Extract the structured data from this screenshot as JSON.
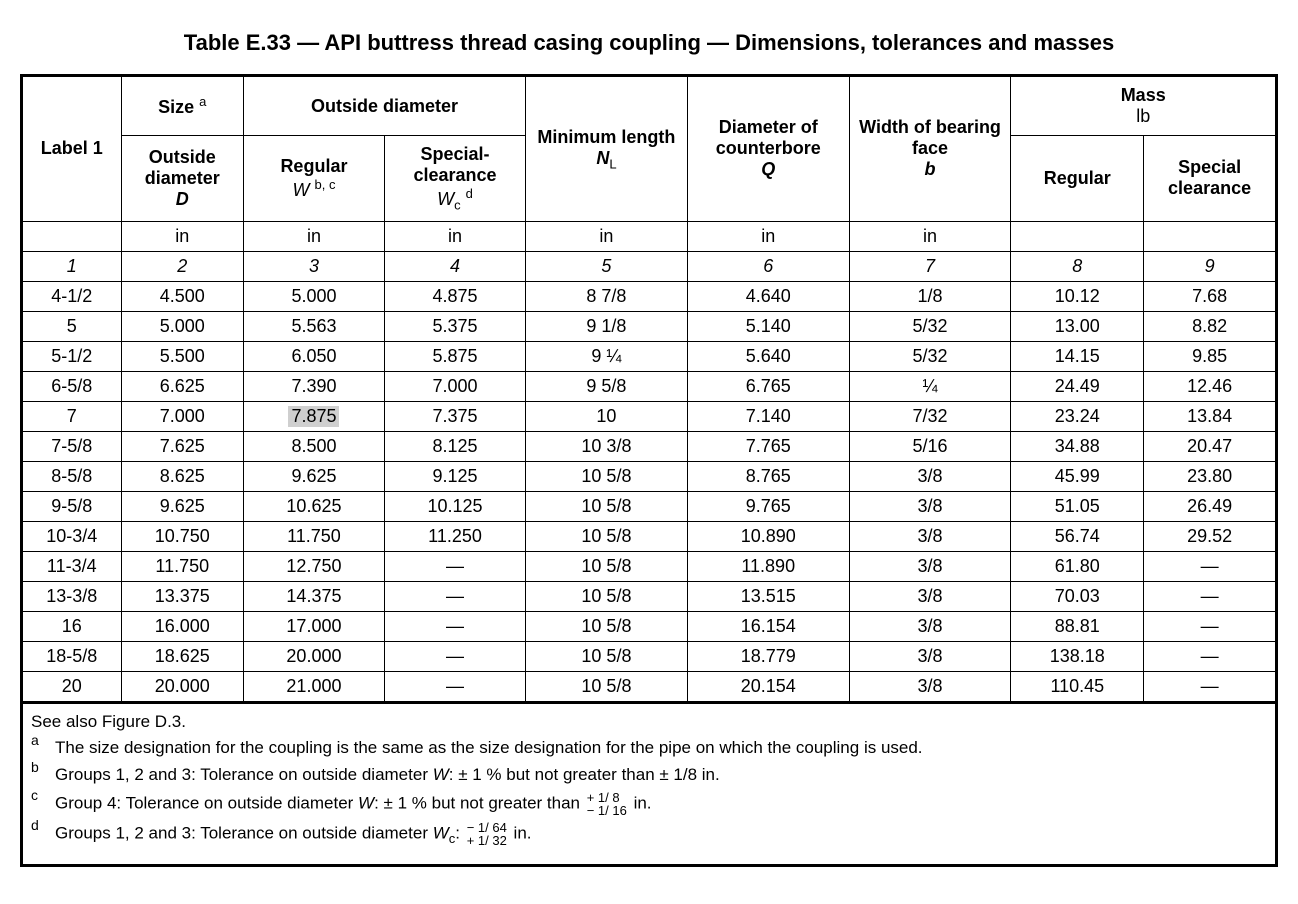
{
  "title": "Table E.33 — API buttress thread casing coupling — Dimensions, tolerances and masses",
  "type": "table",
  "background_color": "#ffffff",
  "text_color": "#000000",
  "highlight_color": "#cfcfcf",
  "border_color": "#000000",
  "header": {
    "label1": "Label 1",
    "size_group": "Size",
    "size_sup": "a",
    "od_group": "Outside diameter",
    "od_outside": "Outside diameter",
    "od_outside_sym": "D",
    "od_regular": "Regular",
    "od_regular_sym": "W",
    "od_regular_sup": "b, c",
    "od_special": "Special-clearance",
    "od_special_sym": "W",
    "od_special_sub": "c",
    "od_special_sup": "d",
    "min_len": "Minimum length",
    "min_len_sym": "N",
    "min_len_sub": "L",
    "counterbore": "Diameter of counterbore",
    "counterbore_sym": "Q",
    "bearing": "Width of bearing face",
    "bearing_sym": "b",
    "mass_group": "Mass",
    "mass_unit": "lb",
    "mass_regular": "Regular",
    "mass_special": "Special clearance",
    "unit_in": "in"
  },
  "colnums": [
    "1",
    "2",
    "3",
    "4",
    "5",
    "6",
    "7",
    "8",
    "9"
  ],
  "highlighted_cell": {
    "row_index": 4,
    "col_index": 2,
    "value": "7.875"
  },
  "columns": [
    "Label 1",
    "Outside diameter D",
    "Regular W",
    "Special-clearance Wc",
    "Minimum length NL",
    "Diameter of counterbore Q",
    "Width of bearing face b",
    "Mass Regular",
    "Mass Special clearance"
  ],
  "rows": [
    [
      "4-1/2",
      "4.500",
      "5.000",
      "4.875",
      "8 7/8",
      "4.640",
      "1/8",
      "10.12",
      "7.68"
    ],
    [
      "5",
      "5.000",
      "5.563",
      "5.375",
      "9 1/8",
      "5.140",
      "5/32",
      "13.00",
      "8.82"
    ],
    [
      "5-1/2",
      "5.500",
      "6.050",
      "5.875",
      "9 ¼",
      "5.640",
      "5/32",
      "14.15",
      "9.85"
    ],
    [
      "6-5/8",
      "6.625",
      "7.390",
      "7.000",
      "9 5/8",
      "6.765",
      "¼",
      "24.49",
      "12.46"
    ],
    [
      "7",
      "7.000",
      "7.875",
      "7.375",
      "10",
      "7.140",
      "7/32",
      "23.24",
      "13.84"
    ],
    [
      "7-5/8",
      "7.625",
      "8.500",
      "8.125",
      "10 3/8",
      "7.765",
      "5/16",
      "34.88",
      "20.47"
    ],
    [
      "8-5/8",
      "8.625",
      "9.625",
      "9.125",
      "10 5/8",
      "8.765",
      "3/8",
      "45.99",
      "23.80"
    ],
    [
      "9-5/8",
      "9.625",
      "10.625",
      "10.125",
      "10 5/8",
      "9.765",
      "3/8",
      "51.05",
      "26.49"
    ],
    [
      "10-3/4",
      "10.750",
      "11.750",
      "11.250",
      "10 5/8",
      "10.890",
      "3/8",
      "56.74",
      "29.52"
    ],
    [
      "11-3/4",
      "11.750",
      "12.750",
      "—",
      "10 5/8",
      "11.890",
      "3/8",
      "61.80",
      "—"
    ],
    [
      "13-3/8",
      "13.375",
      "14.375",
      "—",
      "10 5/8",
      "13.515",
      "3/8",
      "70.03",
      "—"
    ],
    [
      "16",
      "16.000",
      "17.000",
      "—",
      "10 5/8",
      "16.154",
      "3/8",
      "88.81",
      "—"
    ],
    [
      "18-5/8",
      "18.625",
      "20.000",
      "—",
      "10 5/8",
      "18.779",
      "3/8",
      "138.18",
      "—"
    ],
    [
      "20",
      "20.000",
      "21.000",
      "—",
      "10 5/8",
      "20.154",
      "3/8",
      "110.45",
      "—"
    ]
  ],
  "footnotes": {
    "intro": "See also Figure D.3.",
    "a": "The size designation for the coupling is the same as the size designation for the pipe on which the coupling is used.",
    "b_prefix": "Groups 1, 2 and 3: Tolerance on outside diameter ",
    "b_sym": "W",
    "b_suffix": ": ± 1 % but not greater than ± 1/8 in.",
    "c_prefix": "Group 4: Tolerance on outside diameter ",
    "c_sym": "W",
    "c_mid": ": ± 1 % but not greater than ",
    "c_top": "+ 1/ 8",
    "c_bot": "− 1/ 16",
    "c_suffix": " in.",
    "d_prefix": "Groups 1, 2 and 3: Tolerance on outside diameter ",
    "d_sym": "W",
    "d_sub": "c",
    "d_mid": ": ",
    "d_top": "− 1/ 64",
    "d_bot": "+ 1/ 32",
    "d_suffix": " in."
  }
}
